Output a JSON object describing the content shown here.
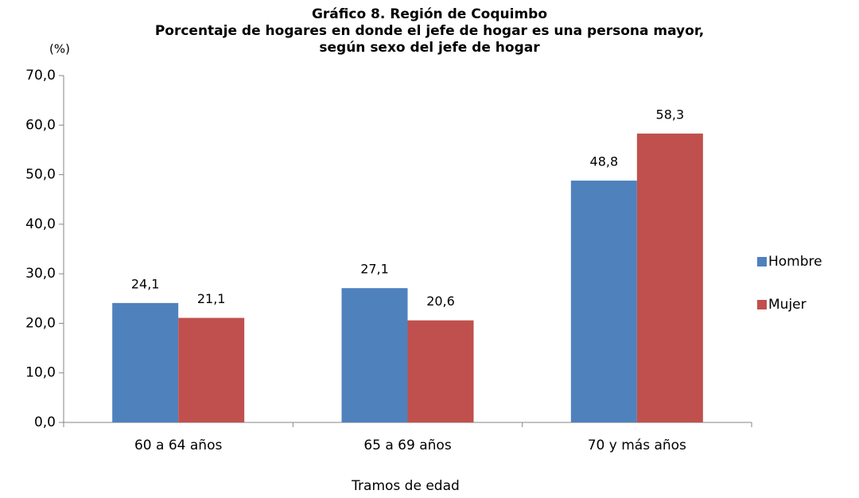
{
  "chart_data": {
    "type": "bar",
    "title": "Gráfico 8. Región de Coquimbo",
    "subtitle": [
      "Porcentaje de hogares en donde el jefe de hogar es una persona mayor,",
      "según sexo del jefe de hogar"
    ],
    "y_label": "(%)",
    "x_label": "Tramos de edad",
    "categories": [
      "60 a 64 años",
      "65 a 69 años",
      "70 y más años"
    ],
    "series": [
      {
        "name": "Hombre",
        "color": "#4f81bd",
        "values": [
          24.1,
          27.1,
          48.8
        ],
        "value_labels": [
          "24,1",
          "27,1",
          "48,8"
        ]
      },
      {
        "name": "Mujer",
        "color": "#c0504d",
        "values": [
          21.1,
          20.6,
          58.3
        ],
        "value_labels": [
          "21,1",
          "20,6",
          "58,3"
        ]
      }
    ],
    "ylim": [
      0,
      70
    ],
    "yticks": [
      {
        "value": 0,
        "label": "0,0"
      },
      {
        "value": 10,
        "label": "10,0"
      },
      {
        "value": 20,
        "label": "20,0"
      },
      {
        "value": 30,
        "label": "30,0"
      },
      {
        "value": 40,
        "label": "40,0"
      },
      {
        "value": 50,
        "label": "50,0"
      },
      {
        "value": 60,
        "label": "60,0"
      },
      {
        "value": 70,
        "label": "70,0"
      }
    ],
    "grid": false,
    "legend": "right"
  }
}
